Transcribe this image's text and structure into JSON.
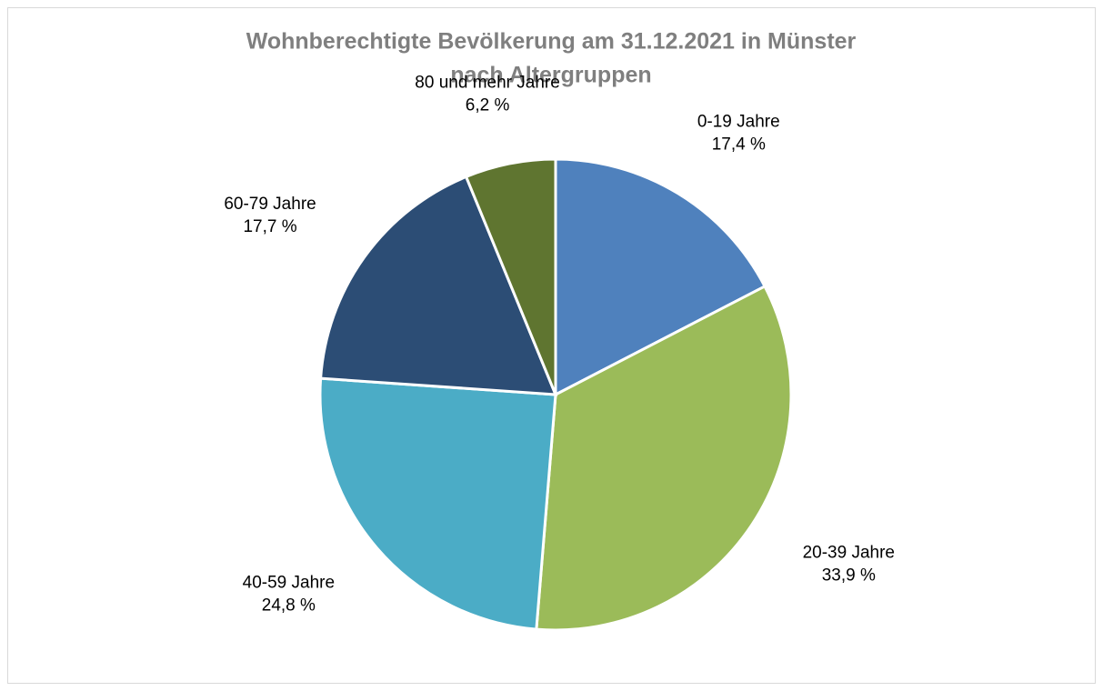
{
  "chart_data": {
    "type": "pie",
    "title": [
      "Wohnberechtigte  Bevölkerung  am  31.12.2021  in  Münster",
      "nach Altergruppen"
    ],
    "categories": [
      "0-19 Jahre",
      "20-39 Jahre",
      "40-59 Jahre",
      "60-79 Jahre",
      "80 und mehr Jahre"
    ],
    "values": [
      17.4,
      33.9,
      24.8,
      17.7,
      6.2
    ],
    "value_labels": [
      "17,4 %",
      "33,9 %",
      "24,8 %",
      "17,7 %",
      "6,2 %"
    ],
    "colors": [
      "#4f81bd",
      "#9bbb59",
      "#4bacc6",
      "#2c4d75",
      "#5f7530"
    ]
  }
}
